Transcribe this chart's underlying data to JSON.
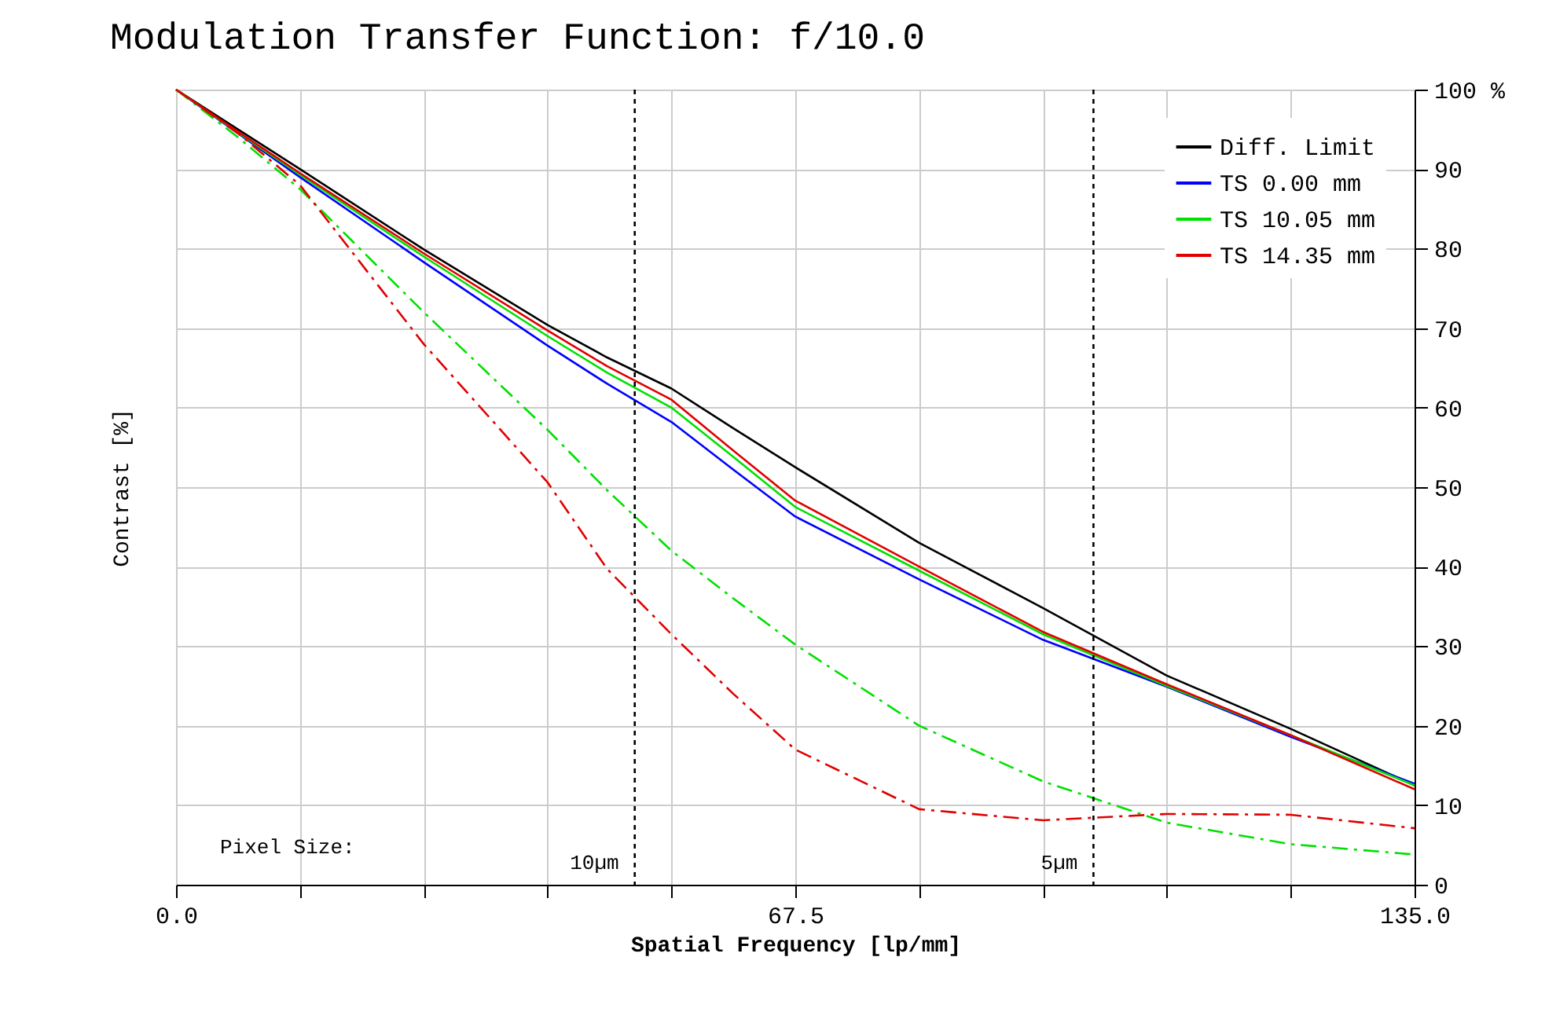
{
  "chart_data": {
    "type": "line",
    "title": "Modulation Transfer Function: f/10.0",
    "xlabel": "Spatial Frequency [lp/mm]",
    "ylabel": "Contrast [%]",
    "x": [
      0,
      6.75,
      13.5,
      27,
      40.5,
      47,
      54,
      60.75,
      67.5,
      81,
      94.5,
      108,
      121.5,
      135
    ],
    "series": [
      {
        "name": "Diff. Limit",
        "color": "#000000",
        "line_style": "solid",
        "values": [
          100,
          95,
          90,
          79.9,
          70.4,
          66.3,
          62.4,
          57.4,
          52.5,
          43,
          34.8,
          26.3,
          19.6,
          12.5
        ]
      },
      {
        "name": "TS 0.00 mm",
        "color": "#0000ff",
        "line_style": "solid",
        "values": [
          100,
          94.5,
          89,
          78.3,
          67.8,
          63,
          58.2,
          52.2,
          46.3,
          38.4,
          30.8,
          24.9,
          18.6,
          12.7
        ]
      },
      {
        "name": "TS 10.05 mm",
        "color": "#00e000",
        "line_style": "solid",
        "values": [
          100,
          94.6,
          89.3,
          79,
          69,
          64.4,
          60,
          53.8,
          47.5,
          39.5,
          31.5,
          25,
          18.8,
          12.5
        ]
      },
      {
        "name": "TS 14.35 mm",
        "color": "#e00000",
        "line_style": "solid",
        "values": [
          100,
          94.7,
          89.5,
          79.4,
          69.7,
          65.2,
          61,
          54.6,
          48.3,
          40,
          31.8,
          25.2,
          18.8,
          12
        ]
      },
      {
        "color": "#00e000",
        "line_style": "dashed",
        "values": [
          100,
          94,
          87.5,
          72,
          57.2,
          49.6,
          42,
          36,
          30.2,
          20,
          13,
          7.8,
          5.1,
          3.8
        ]
      },
      {
        "color": "#e00000",
        "line_style": "dashed",
        "values": [
          100,
          94.5,
          88,
          68,
          50.6,
          39.7,
          31.5,
          24,
          17,
          9.5,
          8.1,
          8.9,
          8.8,
          7.1
        ]
      }
    ],
    "xlim": [
      0,
      135
    ],
    "xticks": [
      {
        "value": 0,
        "label": "0.0"
      },
      {
        "value": 13.5,
        "label": null
      },
      {
        "value": 27,
        "label": null
      },
      {
        "value": 40.5,
        "label": null
      },
      {
        "value": 54,
        "label": null
      },
      {
        "value": 67.5,
        "label": "67.5"
      },
      {
        "value": 81,
        "label": null
      },
      {
        "value": 94.5,
        "label": null
      },
      {
        "value": 108,
        "label": null
      },
      {
        "value": 121.5,
        "label": null
      },
      {
        "value": 135,
        "label": "135.0"
      }
    ],
    "ylim": [
      0,
      100
    ],
    "yticks": [
      0,
      10,
      20,
      30,
      40,
      50,
      60,
      70,
      80,
      90,
      {
        "value": 100,
        "label": "100 %"
      }
    ],
    "ref_lines": [
      {
        "axis": "x",
        "value": 50,
        "label": "10µm",
        "color": "#000000",
        "line_style": "dotted"
      },
      {
        "axis": "x",
        "value": 100,
        "label": "5µm",
        "color": "#000000",
        "line_style": "dotted"
      }
    ],
    "annotations": [
      "Pixel Size:"
    ],
    "grid": true,
    "legend": "top right",
    "marker": "none"
  }
}
